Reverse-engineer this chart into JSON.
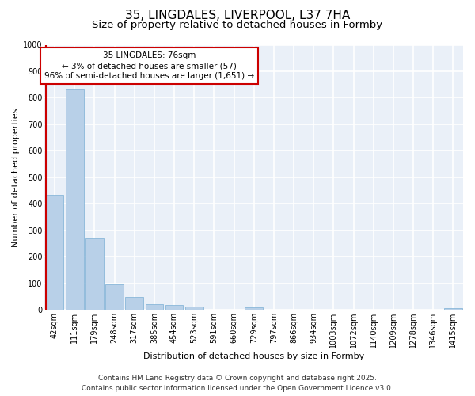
{
  "title1": "35, LINGDALES, LIVERPOOL, L37 7HA",
  "title2": "Size of property relative to detached houses in Formby",
  "xlabel": "Distribution of detached houses by size in Formby",
  "ylabel": "Number of detached properties",
  "categories": [
    "42sqm",
    "111sqm",
    "179sqm",
    "248sqm",
    "317sqm",
    "385sqm",
    "454sqm",
    "523sqm",
    "591sqm",
    "660sqm",
    "729sqm",
    "797sqm",
    "866sqm",
    "934sqm",
    "1003sqm",
    "1072sqm",
    "1140sqm",
    "1209sqm",
    "1278sqm",
    "1346sqm",
    "1415sqm"
  ],
  "values": [
    435,
    830,
    270,
    95,
    47,
    22,
    17,
    13,
    0,
    0,
    10,
    0,
    0,
    0,
    0,
    0,
    0,
    0,
    0,
    0,
    7
  ],
  "bar_color": "#b8d0e8",
  "bar_edge_color": "#7aafd4",
  "annotation_box_line1": "35 LINGDALES: 76sqm",
  "annotation_box_line2": "← 3% of detached houses are smaller (57)",
  "annotation_box_line3": "96% of semi-detached houses are larger (1,651) →",
  "annotation_box_color": "#ffffff",
  "annotation_box_edge_color": "#cc0000",
  "vline_color": "#cc0000",
  "ylim": [
    0,
    1000
  ],
  "yticks": [
    0,
    100,
    200,
    300,
    400,
    500,
    600,
    700,
    800,
    900,
    1000
  ],
  "bg_color": "#eaf0f8",
  "grid_color": "#ffffff",
  "footer1": "Contains HM Land Registry data © Crown copyright and database right 2025.",
  "footer2": "Contains public sector information licensed under the Open Government Licence v3.0.",
  "title1_fontsize": 11,
  "title2_fontsize": 9.5,
  "xlabel_fontsize": 8,
  "ylabel_fontsize": 8,
  "tick_fontsize": 7,
  "footer_fontsize": 6.5,
  "annot_fontsize": 7.5
}
